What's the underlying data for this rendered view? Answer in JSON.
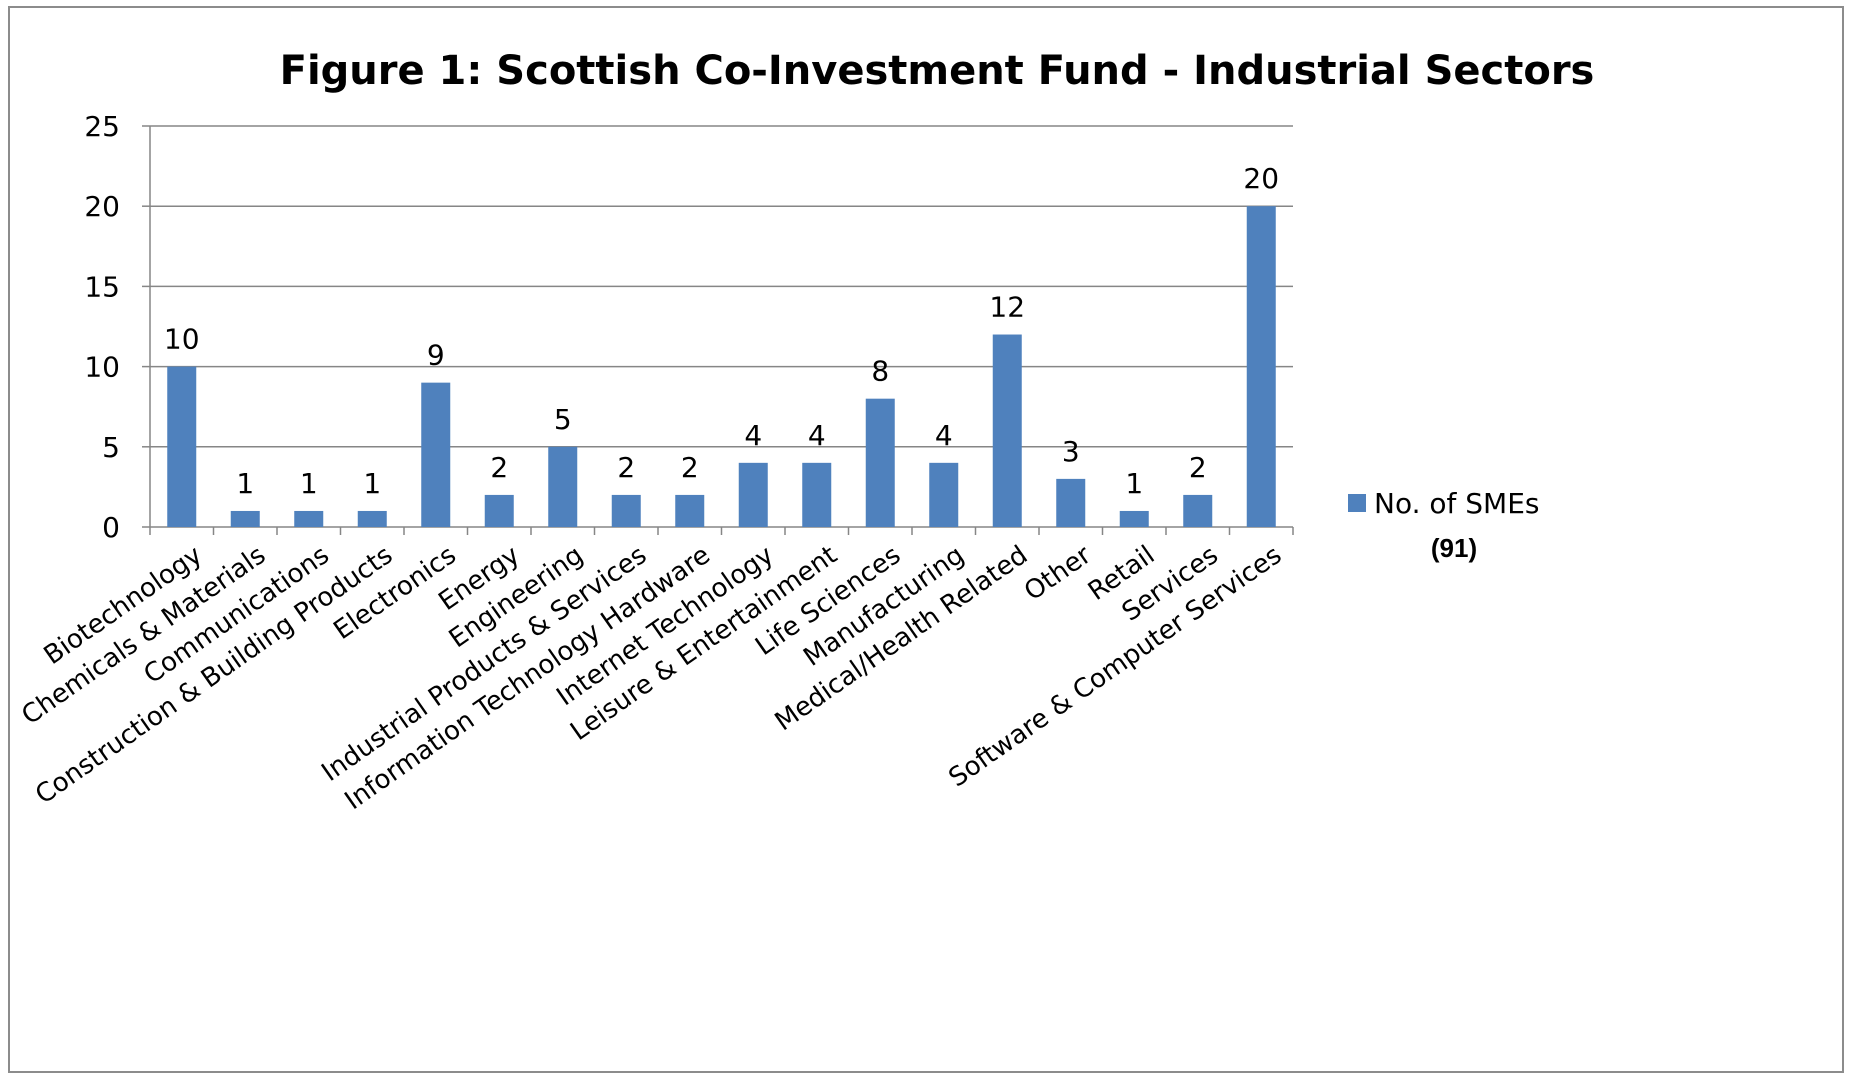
{
  "chart_data": {
    "type": "bar",
    "title": "Figure 1:  Scottish Co-Investment Fund - Industrial Sectors",
    "xlabel": "",
    "ylabel": "",
    "ylim": [
      0,
      25
    ],
    "yticks": [
      0,
      5,
      10,
      15,
      20,
      25
    ],
    "grid": true,
    "legend_position": "right",
    "categories": [
      "Biotechnology",
      "Chemicals & Materials",
      "Communications",
      "Construction & Building Products",
      "Electronics",
      "Energy",
      "Engineering",
      "Industrial Products & Services",
      "Information Technology Hardware",
      "Internet Technology",
      "Leisure & Entertainment",
      "Life Sciences",
      "Manufacturing",
      "Medical/Health Related",
      "Other",
      "Retail",
      "Services",
      "Software & Computer Services"
    ],
    "series": [
      {
        "name": "No. of SMEs",
        "color": "#4f81bd",
        "values": [
          10,
          1,
          1,
          1,
          9,
          2,
          5,
          2,
          2,
          4,
          4,
          8,
          4,
          12,
          3,
          1,
          2,
          20
        ]
      }
    ],
    "data_labels": [
      "10",
      "1",
      "1",
      "1",
      "9",
      "2",
      "5",
      "2",
      "2",
      "4",
      "4",
      "8",
      "4",
      "12",
      "3",
      "1",
      "2",
      "20"
    ],
    "legend_note": "(91)"
  },
  "colors": {
    "bar": "#4f81bd",
    "grid": "#868686",
    "frame": "#8c8c8c"
  }
}
